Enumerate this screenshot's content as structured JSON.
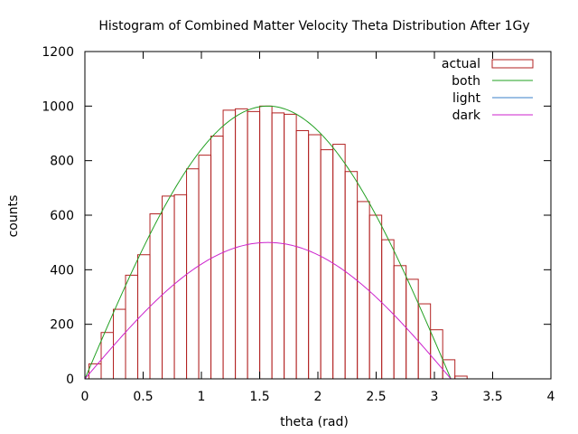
{
  "chart_data": {
    "type": "bar",
    "title": "Histogram of Combined Matter Velocity Theta Distribution After 1Gy",
    "xlabel": "theta (rad)",
    "ylabel": "counts",
    "xlim": [
      0,
      4
    ],
    "ylim": [
      0,
      1200
    ],
    "xticks": [
      "0",
      "0.5",
      "1",
      "1.5",
      "2",
      "2.5",
      "3",
      "3.5",
      "4"
    ],
    "yticks": [
      "0",
      "200",
      "400",
      "600",
      "800",
      "1000",
      "1200"
    ],
    "grid": false,
    "legend_position": "top-right",
    "histogram": {
      "name": "actual",
      "color": "#b22222",
      "bin_start": 0.0349,
      "bin_width": 0.1047,
      "counts": [
        55,
        170,
        255,
        380,
        455,
        605,
        670,
        675,
        770,
        820,
        890,
        985,
        990,
        980,
        1000,
        975,
        970,
        910,
        895,
        840,
        860,
        760,
        650,
        600,
        510,
        415,
        365,
        275,
        180,
        70,
        10
      ]
    },
    "curves": [
      {
        "name": "both",
        "color": "#22a022",
        "amplitude": 1000,
        "function": "A*sin(theta)",
        "range": [
          0,
          3.1416
        ]
      },
      {
        "name": "light",
        "color": "#3a7fc8",
        "amplitude": 0,
        "function": "A*sin(theta)",
        "range": [
          0,
          3.1416
        ]
      },
      {
        "name": "dark",
        "color": "#cc22cc",
        "amplitude": 500,
        "function": "A*sin(theta)",
        "range": [
          0,
          3.1416
        ]
      }
    ],
    "legend": [
      "actual",
      "both",
      "light",
      "dark"
    ]
  }
}
